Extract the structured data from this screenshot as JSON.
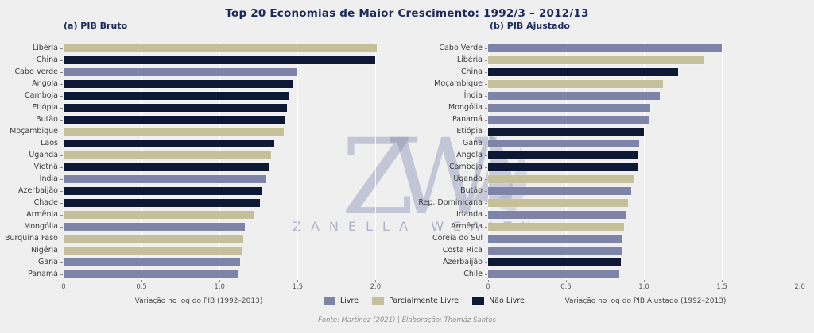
{
  "page": {
    "title": "Top 20 Economias de Maior Crescimento: 1992/3 – 2012/13",
    "footer": "Fonte: Martinez (2021)  |  Elaboração: Thomáz Santos"
  },
  "watermark": {
    "monogram": "ZW",
    "text": "ZANELLA WEALTH"
  },
  "colors": {
    "free": "#7e84a7",
    "partially_free": "#c6c09a",
    "not_free": "#0c1834"
  },
  "legend": {
    "items": [
      {
        "label": "Livre",
        "group": "free"
      },
      {
        "label": "Parcialmente Livre",
        "group": "partially_free"
      },
      {
        "label": "Não Livre",
        "group": "not_free"
      }
    ]
  },
  "chart_data": [
    {
      "type": "bar",
      "orientation": "horizontal",
      "subtitle": "(a) PIB Bruto",
      "xlabel": "Variação no log do PIB (1992–2013)",
      "xlim": [
        0,
        2.09
      ],
      "xticks": [
        "0",
        "0.5",
        "1.0",
        "1.5",
        "2.0"
      ],
      "xtick_values": [
        0,
        0.5,
        1.0,
        1.5,
        2.0
      ],
      "grid": true,
      "bars": [
        {
          "label": "Libéria",
          "value": 2.01,
          "group": "partially_free"
        },
        {
          "label": "China",
          "value": 2.0,
          "group": "not_free"
        },
        {
          "label": "Cabo Verde",
          "value": 1.5,
          "group": "free"
        },
        {
          "label": "Angola",
          "value": 1.47,
          "group": "not_free"
        },
        {
          "label": "Camboja",
          "value": 1.45,
          "group": "not_free"
        },
        {
          "label": "Etiópia",
          "value": 1.43,
          "group": "not_free"
        },
        {
          "label": "Butão",
          "value": 1.42,
          "group": "not_free"
        },
        {
          "label": "Moçambique",
          "value": 1.41,
          "group": "partially_free"
        },
        {
          "label": "Laos",
          "value": 1.35,
          "group": "not_free"
        },
        {
          "label": "Uganda",
          "value": 1.33,
          "group": "partially_free"
        },
        {
          "label": "Vietnã",
          "value": 1.32,
          "group": "not_free"
        },
        {
          "label": "Índia",
          "value": 1.3,
          "group": "free"
        },
        {
          "label": "Azerbaijão",
          "value": 1.27,
          "group": "not_free"
        },
        {
          "label": "Chade",
          "value": 1.26,
          "group": "not_free"
        },
        {
          "label": "Armênia",
          "value": 1.22,
          "group": "partially_free"
        },
        {
          "label": "Mongólia",
          "value": 1.16,
          "group": "free"
        },
        {
          "label": "Burquina Faso",
          "value": 1.15,
          "group": "partially_free"
        },
        {
          "label": "Nigéria",
          "value": 1.14,
          "group": "partially_free"
        },
        {
          "label": "Gana",
          "value": 1.13,
          "group": "free"
        },
        {
          "label": "Panamá",
          "value": 1.12,
          "group": "free"
        }
      ]
    },
    {
      "type": "bar",
      "orientation": "horizontal",
      "subtitle": "(b) PIB Ajustado",
      "xlabel": "Variação no log do PIB Ajustado (1992–2013)",
      "xlim": [
        0,
        2.02
      ],
      "xticks": [
        "0",
        "0.5",
        "1.0",
        "1.5",
        "2.0"
      ],
      "xtick_values": [
        0,
        0.5,
        1.0,
        1.5,
        2.0
      ],
      "grid": true,
      "bars": [
        {
          "label": "Cabo Verde",
          "value": 1.5,
          "group": "free"
        },
        {
          "label": "Libéria",
          "value": 1.38,
          "group": "partially_free"
        },
        {
          "label": "China",
          "value": 1.22,
          "group": "not_free"
        },
        {
          "label": "Moçambique",
          "value": 1.12,
          "group": "partially_free"
        },
        {
          "label": "Índia",
          "value": 1.1,
          "group": "free"
        },
        {
          "label": "Mongólia",
          "value": 1.04,
          "group": "free"
        },
        {
          "label": "Panamá",
          "value": 1.03,
          "group": "free"
        },
        {
          "label": "Etiópia",
          "value": 1.0,
          "group": "not_free"
        },
        {
          "label": "Gana",
          "value": 0.97,
          "group": "free"
        },
        {
          "label": "Angola",
          "value": 0.96,
          "group": "not_free"
        },
        {
          "label": "Camboja",
          "value": 0.96,
          "group": "not_free"
        },
        {
          "label": "Uganda",
          "value": 0.94,
          "group": "partially_free"
        },
        {
          "label": "Butão",
          "value": 0.92,
          "group": "free"
        },
        {
          "label": "Rep. Dominicana",
          "value": 0.9,
          "group": "partially_free"
        },
        {
          "label": "Irlanda",
          "value": 0.89,
          "group": "free"
        },
        {
          "label": "Armênia",
          "value": 0.87,
          "group": "partially_free"
        },
        {
          "label": "Coreia do Sul",
          "value": 0.86,
          "group": "free"
        },
        {
          "label": "Costa Rica",
          "value": 0.86,
          "group": "free"
        },
        {
          "label": "Azerbaijão",
          "value": 0.85,
          "group": "not_free"
        },
        {
          "label": "Chile",
          "value": 0.84,
          "group": "free"
        }
      ]
    }
  ]
}
